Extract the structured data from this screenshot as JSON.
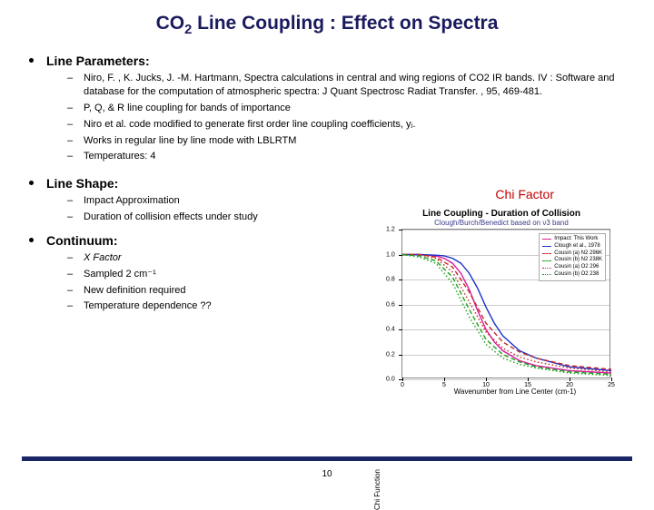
{
  "title_prefix": "CO",
  "title_sub": "2",
  "title_rest": " Line Coupling : Effect on Spectra",
  "sections": {
    "line_params": {
      "heading": "Line Parameters:",
      "items": [
        "Niro, F. , K. Jucks, J. -M. Hartmann, Spectra calculations in central and wing regions of CO2 IR bands. IV : Software and database for the computation of atmospheric spectra: J Quant Spectrosc Radiat Transfer. , 95, 469-481.",
        "P, Q, & R line coupling for bands of importance",
        "Niro et al. code modified to generate first order line coupling coefficients, yⱼ.",
        "Works in regular line by line mode with LBLRTM",
        "Temperatures: 4"
      ]
    },
    "line_shape": {
      "heading": "Line Shape:",
      "items": [
        "Impact Approximation",
        "Duration of collision effects under study"
      ]
    },
    "continuum": {
      "heading": "Continuum:",
      "items": [
        "Χ Factor",
        "Sampled 2 cm⁻¹",
        "New definition required",
        "Temperature dependence ??"
      ]
    }
  },
  "chi_label": "Chi Factor",
  "chart": {
    "title": "Line Coupling - Duration of Collision",
    "subtitle": "Clough/Burch/Benedict based on ν3 band",
    "ylabel": "Chi Function",
    "xlabel": "Wavenumber from Line Center  (cm-1)",
    "xlim": [
      0,
      25
    ],
    "ylim": [
      0,
      1.2
    ],
    "xtick_step": 5,
    "ytick_step": 0.2,
    "grid_color": "#cccccc",
    "series": [
      {
        "label": "Impact: This Work",
        "color": "#d81b9a",
        "dash": "solid",
        "x": [
          0,
          2,
          4,
          5,
          6,
          7,
          8,
          9,
          10,
          11,
          12,
          14,
          16,
          20,
          25
        ],
        "y": [
          1.0,
          1.0,
          0.99,
          0.97,
          0.93,
          0.85,
          0.72,
          0.55,
          0.4,
          0.3,
          0.23,
          0.15,
          0.11,
          0.07,
          0.05
        ]
      },
      {
        "label": "Clough et al., 1978",
        "color": "#1a34c9",
        "dash": "solid",
        "x": [
          0,
          2,
          4,
          5,
          6,
          7,
          8,
          9,
          10,
          11,
          12,
          14,
          16,
          20,
          25
        ],
        "y": [
          1.0,
          1.0,
          0.995,
          0.99,
          0.97,
          0.93,
          0.85,
          0.73,
          0.58,
          0.45,
          0.35,
          0.23,
          0.17,
          0.1,
          0.07
        ]
      },
      {
        "label": "Cousin (a) N2 296K",
        "color": "#c62828",
        "dash": "dashed",
        "x": [
          0,
          2,
          4,
          6,
          8,
          10,
          12,
          14,
          16,
          20,
          25
        ],
        "y": [
          1.0,
          1.0,
          0.98,
          0.9,
          0.7,
          0.45,
          0.3,
          0.22,
          0.17,
          0.11,
          0.08
        ]
      },
      {
        "label": "Cousin (b) N2 238K",
        "color": "#1aa01a",
        "dash": "dashed",
        "x": [
          0,
          2,
          4,
          6,
          8,
          10,
          12,
          14,
          16,
          20,
          25
        ],
        "y": [
          1.0,
          0.99,
          0.95,
          0.82,
          0.56,
          0.32,
          0.2,
          0.14,
          0.1,
          0.06,
          0.04
        ]
      },
      {
        "label": "Cousin (a) O2 296",
        "color": "#c62828",
        "dash": "dotted",
        "x": [
          0,
          2,
          4,
          6,
          8,
          10,
          12,
          14,
          16,
          20,
          25
        ],
        "y": [
          1.0,
          1.0,
          0.97,
          0.86,
          0.62,
          0.38,
          0.25,
          0.18,
          0.14,
          0.09,
          0.06
        ]
      },
      {
        "label": "Cousin (b) O2 238",
        "color": "#1aa01a",
        "dash": "dotted",
        "x": [
          0,
          2,
          4,
          6,
          8,
          10,
          12,
          14,
          16,
          20,
          25
        ],
        "y": [
          1.0,
          0.98,
          0.93,
          0.77,
          0.5,
          0.28,
          0.17,
          0.12,
          0.09,
          0.05,
          0.03
        ]
      }
    ]
  },
  "page_number": "10",
  "colors": {
    "title": "#1a1a5e",
    "chi": "#c00000",
    "footer_bar": "#1a2766"
  }
}
